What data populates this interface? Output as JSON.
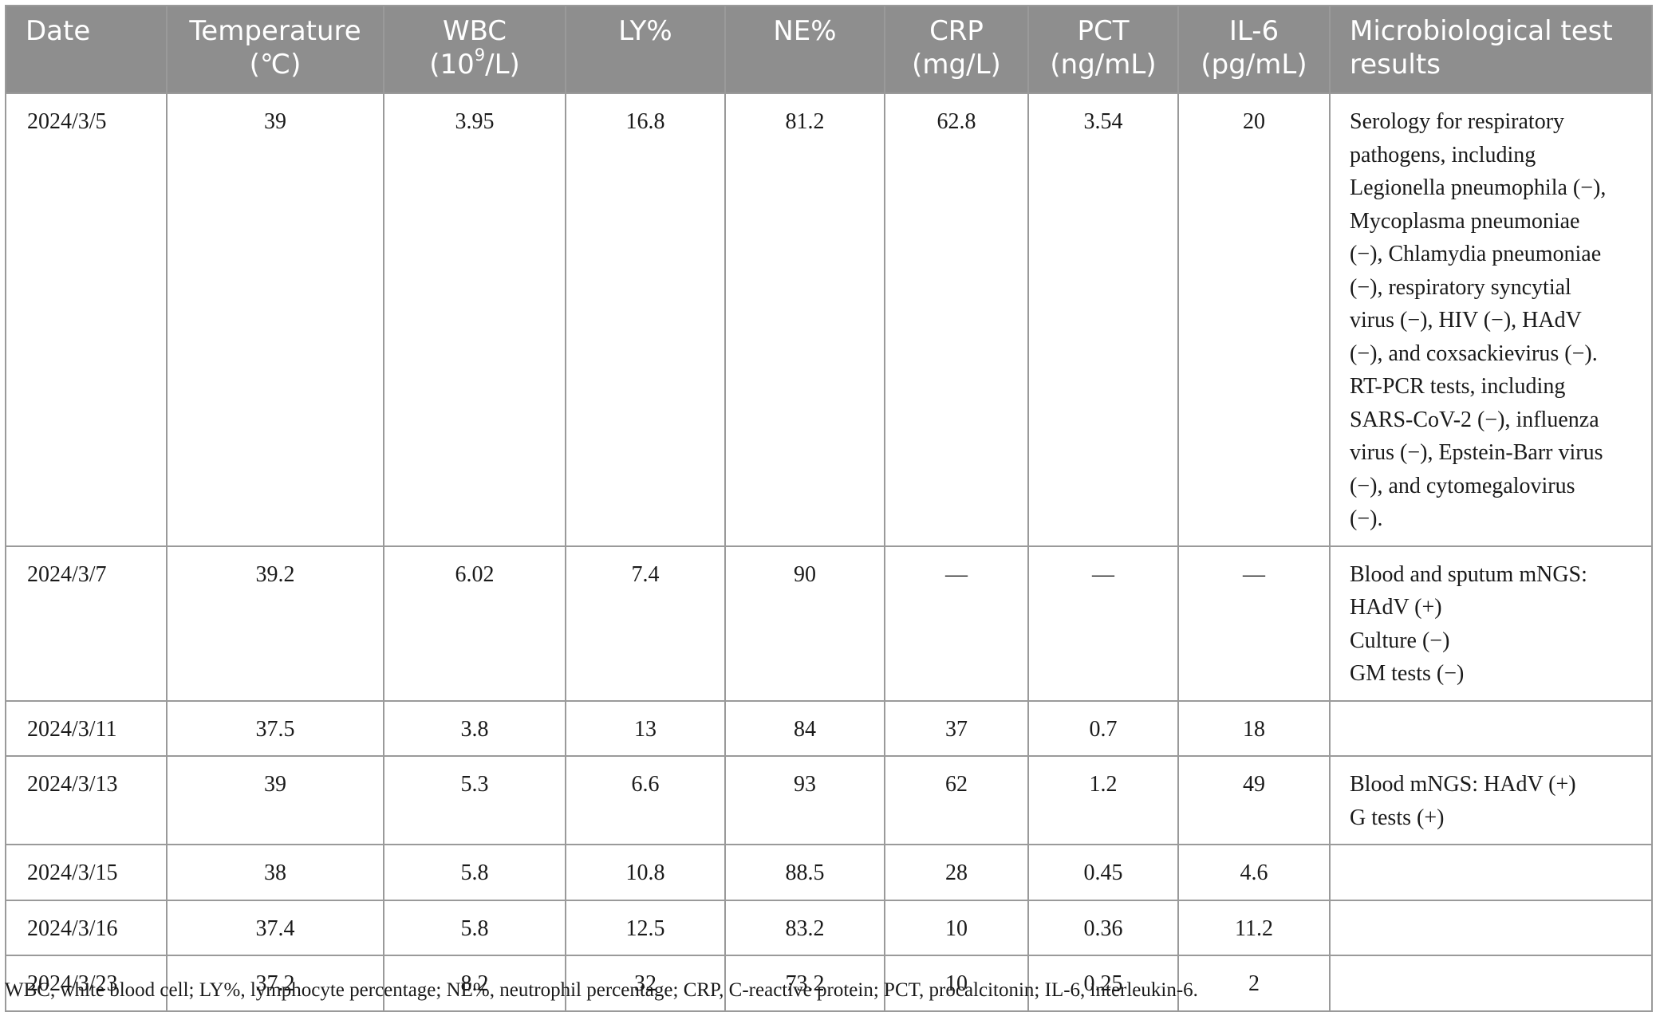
{
  "table": {
    "headers": [
      {
        "line1": "Date",
        "line2": ""
      },
      {
        "line1": "Temperature",
        "line2": "(℃)"
      },
      {
        "line1": "WBC",
        "line2_pre": "(10",
        "line2_sup": "9",
        "line2_post": "/L)"
      },
      {
        "line1": "LY%",
        "line2": ""
      },
      {
        "line1": "NE%",
        "line2": ""
      },
      {
        "line1": "CRP",
        "line2": "(mg/L)"
      },
      {
        "line1": "PCT",
        "line2": "(ng/mL)"
      },
      {
        "line1": "IL-6",
        "line2": "(pg/mL)"
      },
      {
        "line1": "Microbiological test",
        "line2": "results"
      }
    ],
    "rows": [
      {
        "date": "2024/3/5",
        "temp": "39",
        "wbc": "3.95",
        "ly": "16.8",
        "ne": "81.2",
        "crp": "62.8",
        "pct": "3.54",
        "il6": "20",
        "micro": [
          "Serology for respiratory",
          "pathogens, including",
          "Legionella pneumophila (−),",
          "Mycoplasma pneumoniae",
          "(−), Chlamydia pneumoniae",
          "(−), respiratory syncytial",
          "virus (−), HIV (−), HAdV",
          "(−), and coxsackievirus (−).",
          "RT-PCR tests, including",
          "SARS-CoV-2 (−), influenza",
          "virus (−), Epstein-Barr virus",
          "(−), and cytomegalovirus",
          "(−)."
        ]
      },
      {
        "date": "2024/3/7",
        "temp": "39.2",
        "wbc": "6.02",
        "ly": "7.4",
        "ne": "90",
        "crp": "—",
        "pct": "—",
        "il6": "—",
        "micro": [
          "Blood and sputum mNGS:",
          "HAdV (+)",
          "Culture (−)",
          "GM tests (−)"
        ]
      },
      {
        "date": "2024/3/11",
        "temp": "37.5",
        "wbc": "3.8",
        "ly": "13",
        "ne": "84",
        "crp": "37",
        "pct": "0.7",
        "il6": "18",
        "micro": []
      },
      {
        "date": "2024/3/13",
        "temp": "39",
        "wbc": "5.3",
        "ly": "6.6",
        "ne": "93",
        "crp": "62",
        "pct": "1.2",
        "il6": "49",
        "micro": [
          "Blood mNGS: HAdV (+)",
          "G tests (+)"
        ]
      },
      {
        "date": "2024/3/15",
        "temp": "38",
        "wbc": "5.8",
        "ly": "10.8",
        "ne": "88.5",
        "crp": "28",
        "pct": "0.45",
        "il6": "4.6",
        "micro": []
      },
      {
        "date": "2024/3/16",
        "temp": "37.4",
        "wbc": "5.8",
        "ly": "12.5",
        "ne": "83.2",
        "crp": "10",
        "pct": "0.36",
        "il6": "11.2",
        "micro": []
      },
      {
        "date": "2024/3/23",
        "temp": "37.2",
        "wbc": "8.2",
        "ly": "32",
        "ne": "73.2",
        "crp": "10",
        "pct": "0.25",
        "il6": "2",
        "micro": []
      }
    ]
  },
  "footnote": "WBC, white blood cell; LY%, lymphocyte percentage; NE%, neutrophil percentage; CRP, C-reactive protein; PCT, procalcitonin; IL-6, interleukin-6.",
  "colors": {
    "header_bg": "#8e8e8e",
    "header_text": "#ffffff",
    "border": "#9a9a9a"
  }
}
